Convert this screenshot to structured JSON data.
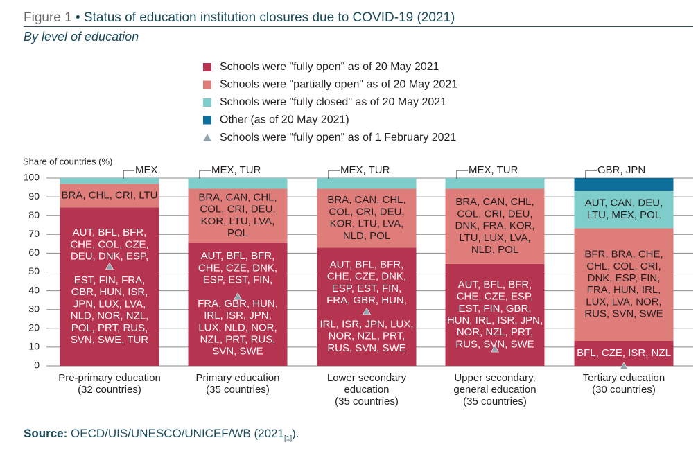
{
  "figure": {
    "number": "Figure 1",
    "bullet": "•",
    "title": "Status of education institution closures due to COVID-19 (2021)",
    "subtitle": "By level of education"
  },
  "source": {
    "label": "Source:",
    "text": "OECD/UIS/UNESCO/UNICEF/WB (2021",
    "ref": "[1]",
    "end": ")."
  },
  "colors": {
    "fully_open": "#b5344f",
    "partially_open": "#de7d7a",
    "fully_closed": "#7ecdcb",
    "other": "#0d6f9a",
    "marker": "#8fa3ad"
  },
  "chart_data": {
    "type": "bar",
    "stacked": true,
    "ylabel": "Share of countries (%)",
    "ylim": [
      0,
      100
    ],
    "yticks": [
      0,
      10,
      20,
      30,
      40,
      50,
      60,
      70,
      80,
      90,
      100
    ],
    "grid": true,
    "legend_position": "top",
    "legend": [
      {
        "key": "fully_open",
        "label": "Schools were \"fully open\" as of 20 May 2021",
        "marker": "square"
      },
      {
        "key": "partially_open",
        "label": "Schools were \"partially open\" as of 20 May 2021",
        "marker": "square"
      },
      {
        "key": "fully_closed",
        "label": "Schools were \"fully closed\" as of 20 May 2021",
        "marker": "square"
      },
      {
        "key": "other",
        "label": "Other (as of 20 May 2021)",
        "marker": "square"
      },
      {
        "key": "february",
        "label": "Schools were \"fully open\" as of 1 February 2021",
        "marker": "triangle"
      }
    ],
    "categories": [
      [
        "Pre-primary education",
        "(32 countries)"
      ],
      [
        "Primary education",
        "(35 countries)"
      ],
      [
        "Lower secondary",
        "education",
        "(35 countries)"
      ],
      [
        "Upper secondary,",
        "general education",
        "(35 countries)"
      ],
      [
        "Tertiary education",
        "(30 countries)"
      ]
    ],
    "series": [
      {
        "key": "fully_open",
        "values": [
          84.4,
          65.7,
          62.9,
          54.3,
          13.3
        ]
      },
      {
        "key": "partially_open",
        "values": [
          12.5,
          28.6,
          31.4,
          40.0,
          60.0
        ]
      },
      {
        "key": "fully_closed",
        "values": [
          3.1,
          5.7,
          5.7,
          5.7,
          20.0
        ]
      },
      {
        "key": "other",
        "values": [
          0,
          0,
          0,
          0,
          6.7
        ]
      }
    ],
    "february_markers": [
      53,
      37,
      29,
      9,
      0
    ],
    "country_labels": {
      "fully_open": [
        [
          "AUT, BFL, BFR,",
          "CHE, COL, CZE,",
          "DEU, DNK, ESP,",
          "",
          "EST, FIN, FRA,",
          "GBR, HUN, ISR,",
          "JPN, LUX, LVA,",
          "NLD, NOR, NZL,",
          "POL, PRT, RUS,",
          "SVN, SWE, TUR"
        ],
        [
          "AUT, BFL, BFR,",
          "CHE, CZE, DNK,",
          "ESP, EST, FIN,",
          "",
          "FRA, GBR, HUN,",
          "IRL, ISR, JPN,",
          "LUX, NLD, NOR,",
          "NZL, PRT, RUS,",
          "SVN, SWE"
        ],
        [
          "AUT, BFL, BFR,",
          "CHE, CZE, DNK,",
          "ESP, EST, FIN,",
          "FRA, GBR, HUN,",
          "",
          "IRL, ISR, JPN, LUX,",
          "NOR, NZL, PRT,",
          "RUS, SVN, SWE"
        ],
        [
          "AUT, BFL, BFR,",
          "CHE, CZE, ESP,",
          "EST, FIN, GBR,",
          "HUN, IRL, ISR, JPN,",
          "NOR, NZL, PRT,",
          "RUS, SVN, SWE"
        ],
        [
          "BFL, CZE, ISR, NZL"
        ]
      ],
      "partially_open": [
        [
          "BRA, CHL, CRI, LTU"
        ],
        [
          "BRA, CAN, CHL,",
          "COL, CRI, DEU,",
          "KOR, LTU, LVA,",
          "POL"
        ],
        [
          "BRA, CAN, CHL,",
          "COL, CRI, DEU,",
          "KOR, LTU, LVA,",
          "NLD, POL"
        ],
        [
          "BRA, CAN, CHL,",
          "COL, CRI, DEU,",
          "DNK, FRA, KOR,",
          "LTU, LUX, LVA,",
          "NLD, POL"
        ],
        [
          "BFR, BRA, CHE,",
          "CHL, COL, CRI,",
          "DNK, ESP, FIN,",
          "FRA, HUN, IRL,",
          "LUX, LVA, NOR,",
          "RUS, SVN, SWE"
        ]
      ],
      "fully_closed": [
        [],
        [],
        [],
        [],
        [
          "AUT, CAN, DEU,",
          "LTU, MEX, POL"
        ]
      ],
      "callouts": [
        "MEX",
        "MEX, TUR",
        "MEX, TUR",
        "MEX, TUR",
        "GBR, JPN"
      ]
    }
  }
}
